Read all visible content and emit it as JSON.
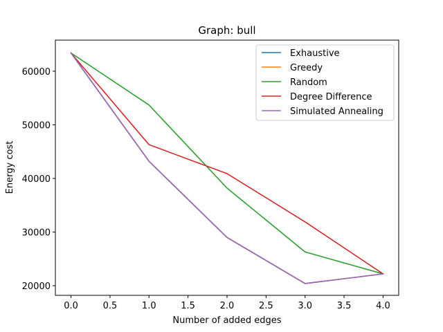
{
  "chart_data": {
    "type": "line",
    "title": "Graph: bull",
    "xlabel": "Number of added edges",
    "ylabel": "Energy cost",
    "xlim": [
      -0.2,
      4.2
    ],
    "ylim": [
      18200,
      65800
    ],
    "xticks": [
      0.0,
      0.5,
      1.0,
      1.5,
      2.0,
      2.5,
      3.0,
      3.5,
      4.0
    ],
    "xtick_labels": [
      "0.0",
      "0.5",
      "1.0",
      "1.5",
      "2.0",
      "2.5",
      "3.0",
      "3.5",
      "4.0"
    ],
    "yticks": [
      20000,
      30000,
      40000,
      50000,
      60000
    ],
    "ytick_labels": [
      "20000",
      "30000",
      "40000",
      "50000",
      "60000"
    ],
    "grid": false,
    "legend_position": "top-right",
    "x": [
      0,
      1,
      2,
      3,
      4
    ],
    "series": [
      {
        "name": "Exhaustive",
        "color": "#1f77b4",
        "values": [
          63400,
          43200,
          29000,
          20400,
          22200
        ]
      },
      {
        "name": "Greedy",
        "color": "#ff7f0e",
        "values": [
          63400,
          43200,
          29000,
          20400,
          22200
        ]
      },
      {
        "name": "Random",
        "color": "#2ca02c",
        "values": [
          63400,
          53700,
          38200,
          26300,
          22200
        ]
      },
      {
        "name": "Degree Difference",
        "color": "#d62728",
        "values": [
          63400,
          46300,
          40900,
          31900,
          22200
        ]
      },
      {
        "name": "Simulated Annealing",
        "color": "#9467bd",
        "values": [
          63400,
          43200,
          29000,
          20400,
          22200
        ]
      }
    ]
  }
}
